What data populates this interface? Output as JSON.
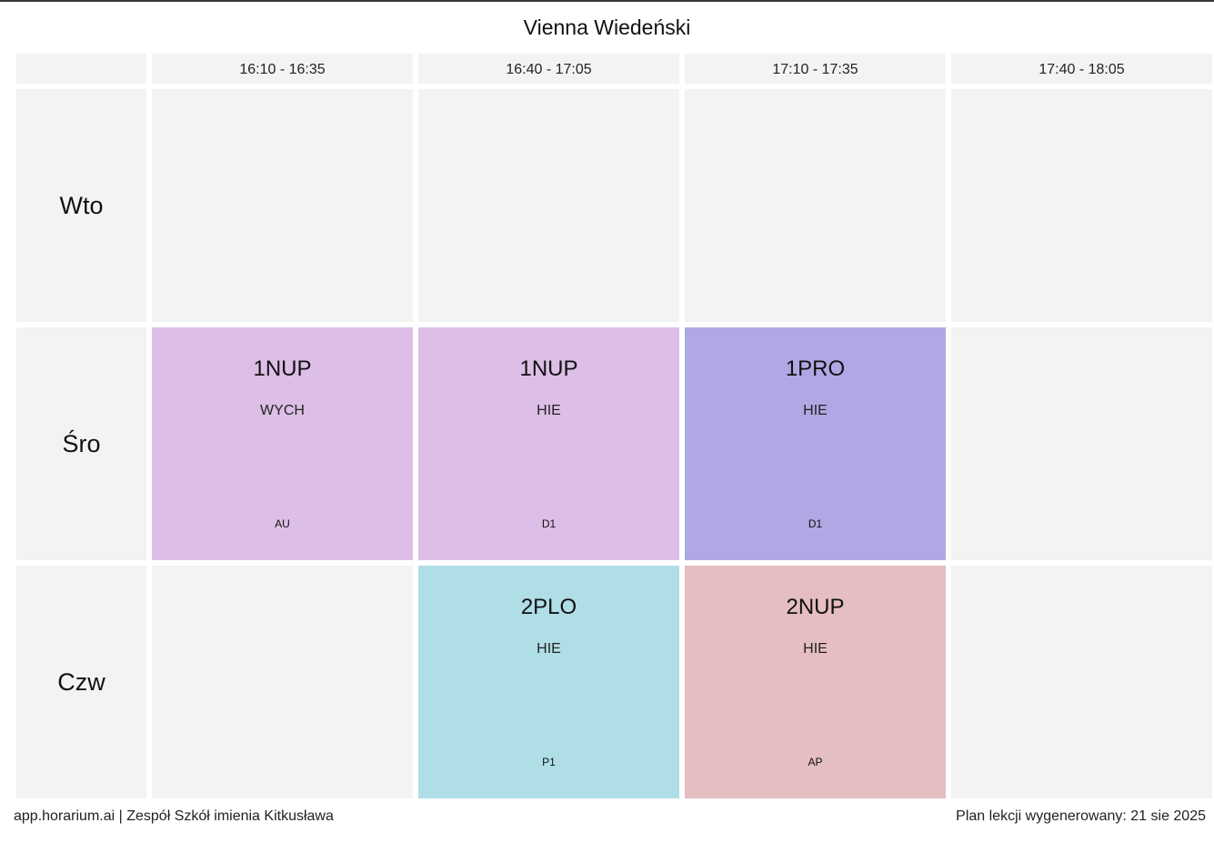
{
  "title": "Vienna Wiedeński",
  "time_slots": [
    "16:10 - 16:35",
    "16:40 - 17:05",
    "17:10 - 17:35",
    "17:40 - 18:05"
  ],
  "days": [
    "Wto",
    "Śro",
    "Czw"
  ],
  "lessons": {
    "sro_1": {
      "class": "1NUP",
      "subject": "WYCH",
      "room": "AU",
      "color": "#dcbee6"
    },
    "sro_2": {
      "class": "1NUP",
      "subject": "HIE",
      "room": "D1",
      "color": "#dcbee6"
    },
    "sro_3": {
      "class": "1PRO",
      "subject": "HIE",
      "room": "D1",
      "color": "#b0a8e4"
    },
    "czw_2": {
      "class": "2PLO",
      "subject": "HIE",
      "room": "P1",
      "color": "#b0dee6"
    },
    "czw_3": {
      "class": "2NUP",
      "subject": "HIE",
      "room": "AP",
      "color": "#e4bec0"
    }
  },
  "empty_cell_color": "#f3f3f3",
  "footer": {
    "left": "app.horarium.ai | Zespół Szkół imienia Kitkusława",
    "right": "Plan lekcji wygenerowany: 21 sie 2025"
  }
}
